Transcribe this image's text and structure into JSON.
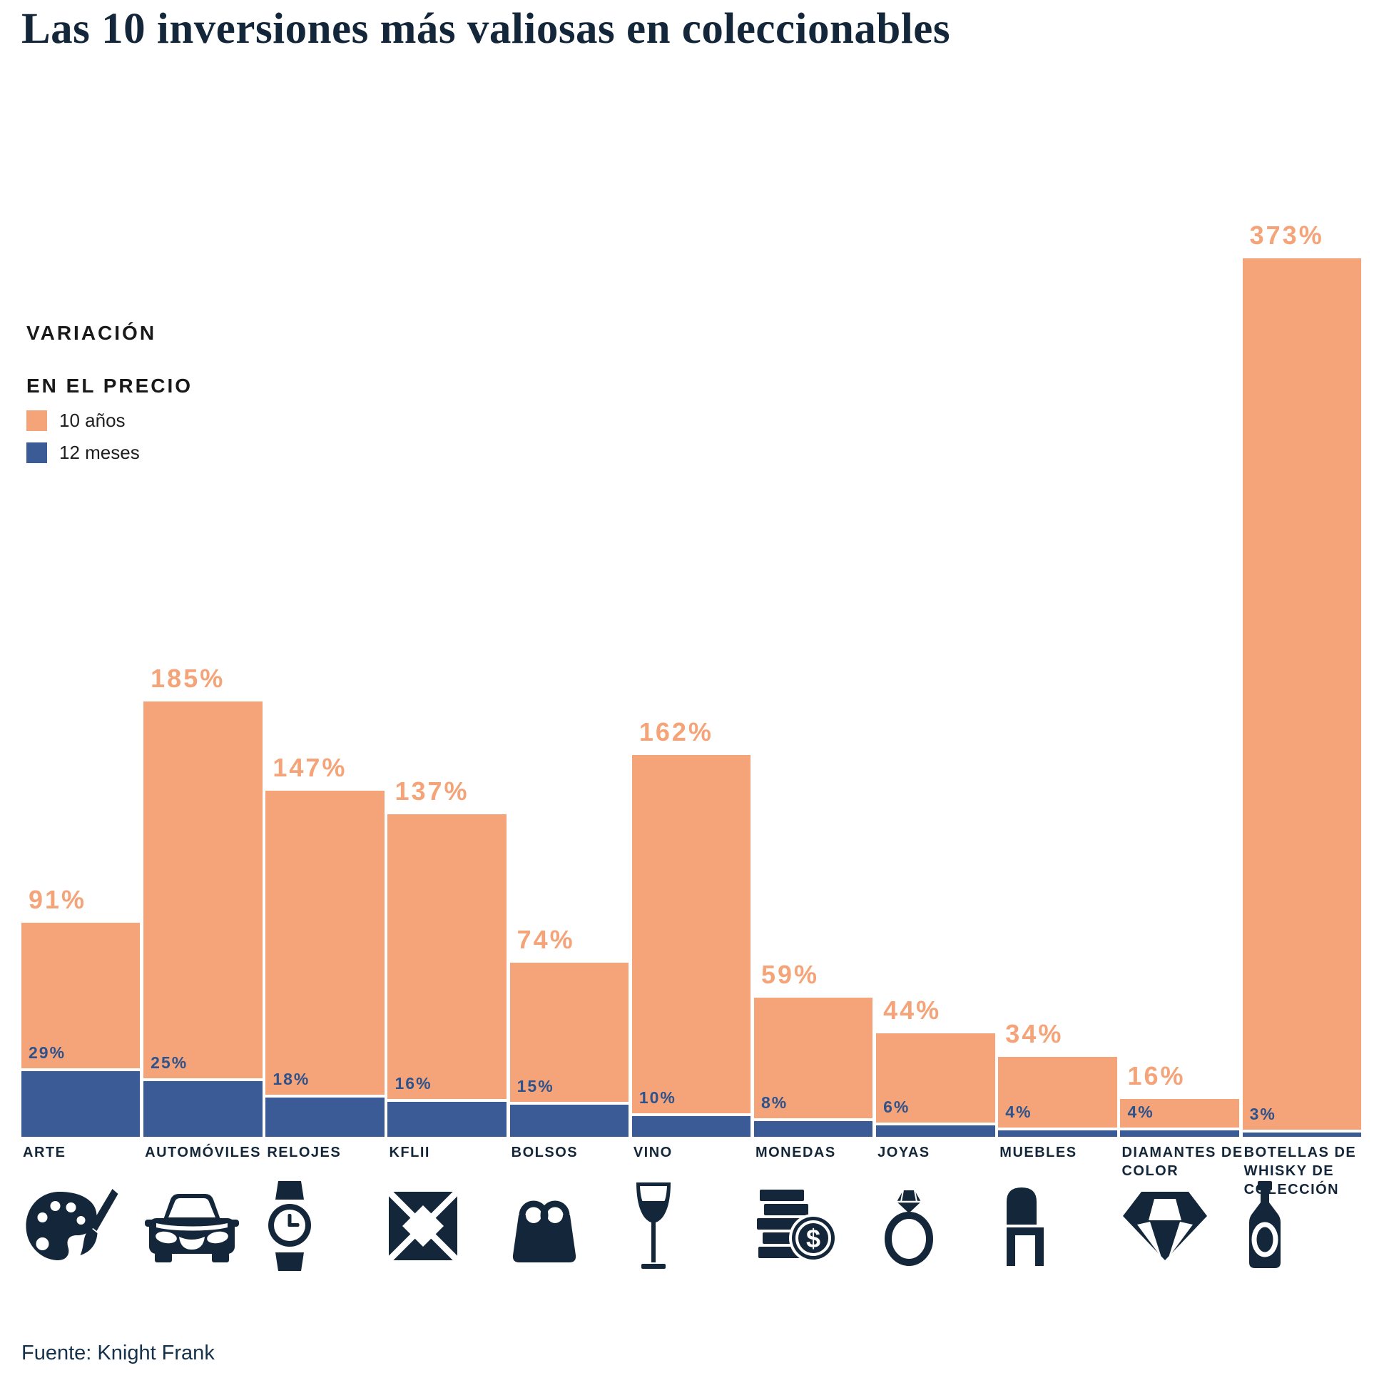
{
  "title": "Las 10 inversiones más valiosas en coleccionables",
  "legend": {
    "title_line1": "VARIACIÓN",
    "title_line2": "EN EL PRECIO",
    "items": [
      {
        "label": "10 años",
        "color": "#F4A478"
      },
      {
        "label": "12 meses",
        "color": "#3A5B96"
      }
    ]
  },
  "source": "Fuente: Knight Frank",
  "chart_data": {
    "type": "bar",
    "title": "Las 10 inversiones más valiosas en coleccionables",
    "categories": [
      "ARTE",
      "AUTOMÓVILES",
      "RELOJES",
      "KFLII",
      "BOLSOS",
      "VINO",
      "MONEDAS",
      "JOYAS",
      "MUEBLES",
      "DIAMANTES DE COLOR",
      "BOTELLAS DE WHISKY DE COLECCIÓN"
    ],
    "icons": [
      "palette-icon",
      "car-icon",
      "watch-icon",
      "kf-logo-icon",
      "handbag-icon",
      "wine-glass-icon",
      "coins-icon",
      "ring-icon",
      "chair-icon",
      "diamond-icon",
      "whisky-bottle-icon"
    ],
    "series": [
      {
        "name": "10 años",
        "color": "#F4A478",
        "values": [
          91,
          185,
          147,
          137,
          74,
          162,
          59,
          44,
          34,
          16,
          373
        ]
      },
      {
        "name": "12 meses",
        "color": "#3A5B96",
        "values": [
          29,
          25,
          18,
          16,
          15,
          10,
          8,
          6,
          4,
          4,
          3
        ]
      }
    ],
    "unit": "%",
    "ylim": [
      0,
      373
    ],
    "grid": false,
    "legend_position": "upper-left",
    "value_labels": "above-bars"
  }
}
